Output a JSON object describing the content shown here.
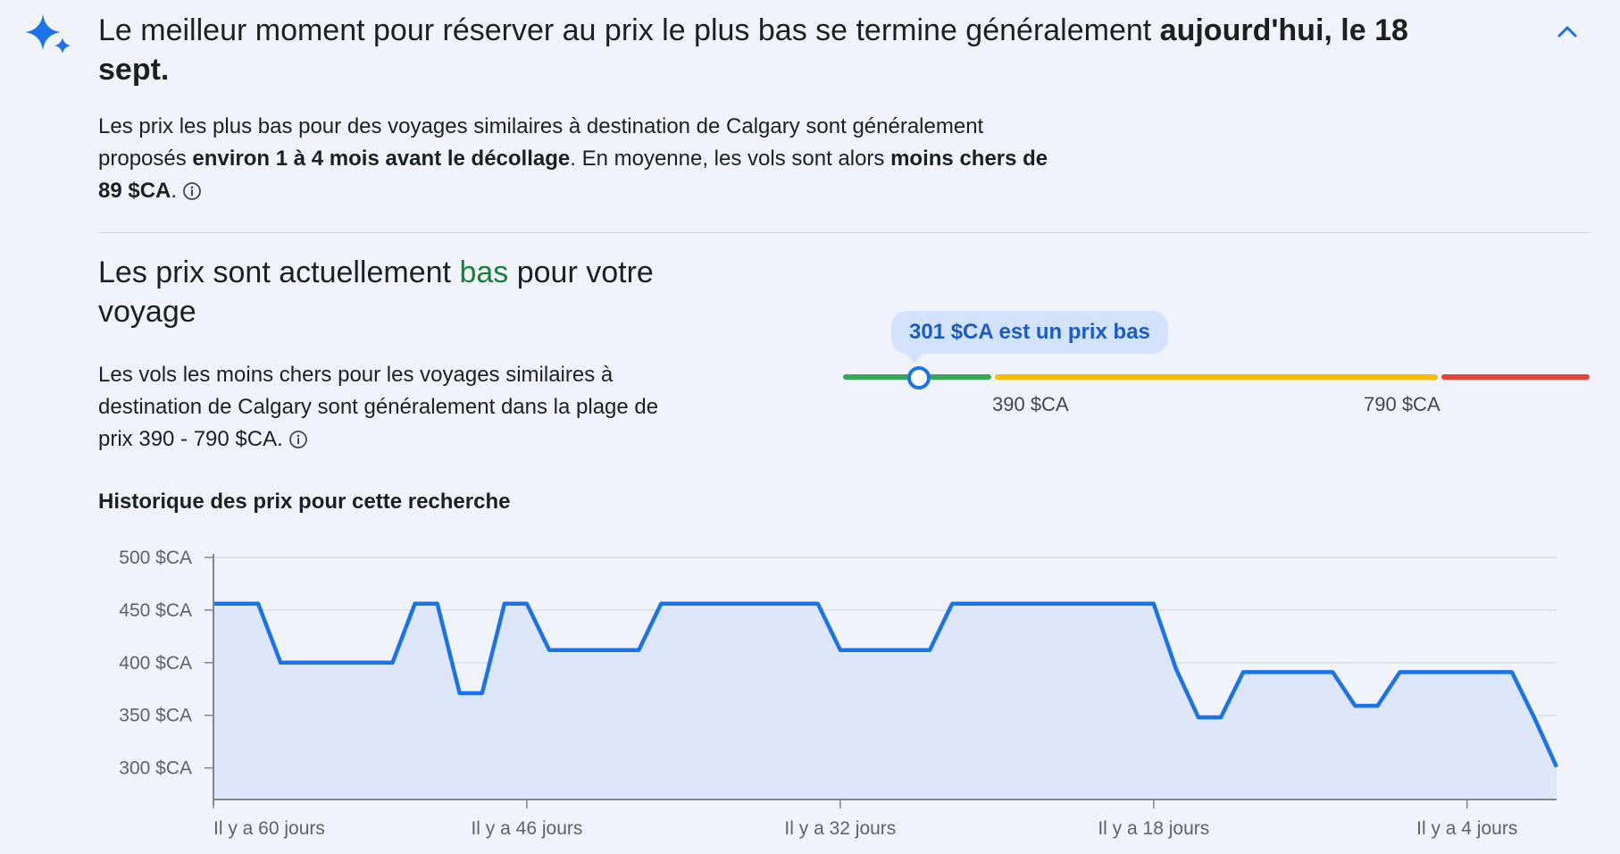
{
  "insight": {
    "headline_lead": "Le meilleur moment pour réserver au prix le plus bas se termine généralement ",
    "headline_bold": "aujourd'hui, le 18 sept.",
    "para_1": "Les prix les plus bas pour des voyages similaires à destination de Calgary sont généralement proposés ",
    "para_bold_1": "environ 1 à 4 mois avant le décollage",
    "para_2": ". En moyenne, les vols sont alors ",
    "para_bold_2": "moins chers de 89 $CA",
    "para_3": "."
  },
  "price_status": {
    "title_lead": "Les prix sont actuellement ",
    "title_status": "bas",
    "title_tail": " pour votre voyage",
    "range_text": "Les vols les moins chers pour les voyages similaires à destination de Calgary sont généralement dans la plage de prix 390 - 790 $CA.",
    "tooltip": "301 $CA est un prix bas",
    "range_low_label": "390 $CA",
    "range_high_label": "790 $CA",
    "current_price": 301,
    "range_low": 390,
    "range_high": 790,
    "scale_min": 80,
    "scale_max": 1010,
    "colors": {
      "low": "#34a853",
      "typical": "#fbbc04",
      "high": "#ea4335",
      "accent": "#1a73e8"
    }
  },
  "icons": {
    "sparkle": "sparkle-icon",
    "collapse": "chevron-up-icon",
    "info": "info-icon"
  },
  "chart_title": "Historique des prix pour cette recherche",
  "chart_data": {
    "type": "area",
    "title": "Historique des prix pour cette recherche",
    "xlabel": "",
    "ylabel": "",
    "ylim": [
      270,
      500
    ],
    "yticks": [
      500,
      450,
      400,
      350,
      300
    ],
    "ytick_labels": [
      "500 $CA",
      "450 $CA",
      "400 $CA",
      "350 $CA",
      "300 $CA"
    ],
    "xticks": [
      60,
      46,
      32,
      18,
      4
    ],
    "xtick_labels": [
      "Il y a 60 jours",
      "Il y a 46 jours",
      "Il y a 32 jours",
      "Il y a 18 jours",
      "Il y a 4 jours"
    ],
    "x_unit": "jours avant aujourd'hui",
    "grid": true,
    "series": [
      {
        "x": [
          60,
          58,
          57,
          52,
          51,
          50,
          49,
          48,
          47,
          46,
          45,
          41,
          40,
          33,
          32,
          28,
          27,
          18,
          17,
          16,
          15,
          14,
          10,
          9,
          8,
          7,
          3,
          2,
          1,
          0
        ],
        "values": [
          456,
          456,
          400,
          400,
          456,
          456,
          371,
          371,
          456,
          456,
          412,
          412,
          456,
          456,
          412,
          412,
          456,
          456,
          394,
          348,
          348,
          391,
          391,
          359,
          359,
          391,
          391,
          391,
          348,
          301
        ],
        "color": "#1a73e8",
        "fill": "#dde6fa"
      }
    ]
  }
}
